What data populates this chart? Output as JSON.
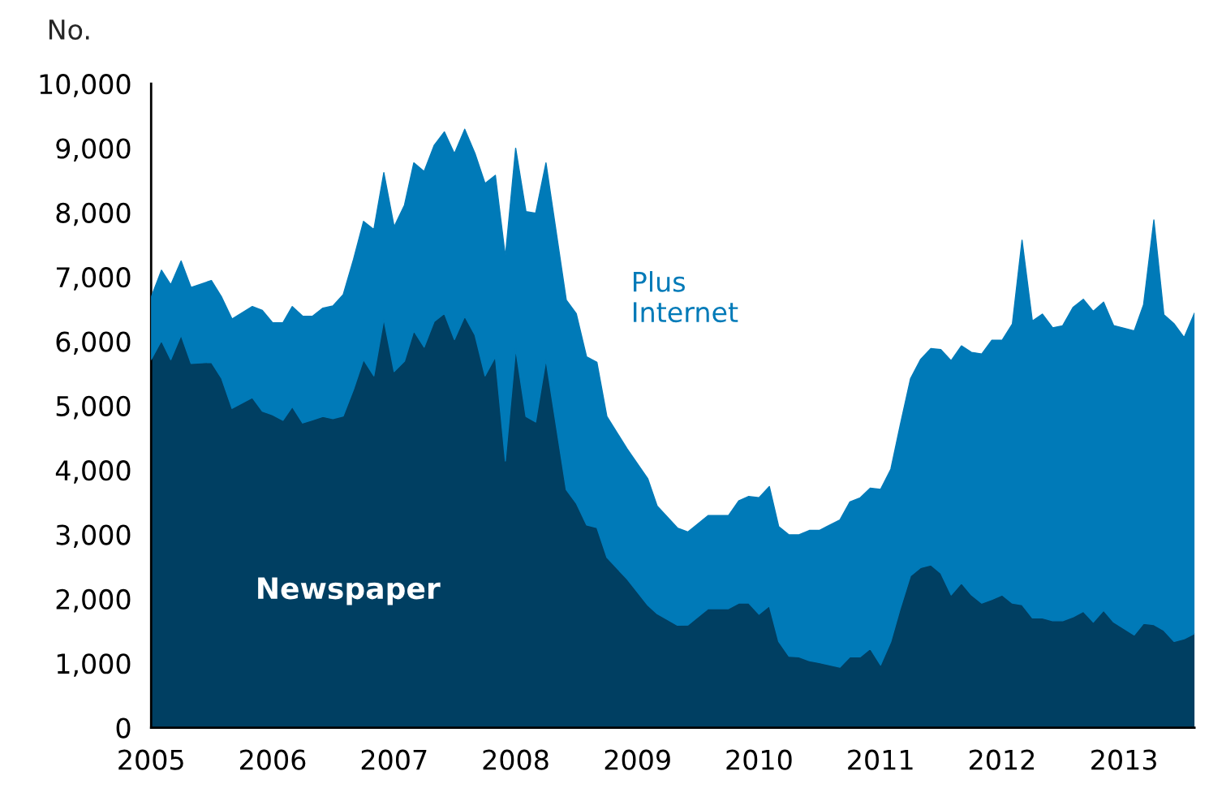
{
  "chart_data": {
    "type": "area",
    "stacked": true,
    "ylabel": "No.",
    "x": [
      "2005-01",
      "2005-02",
      "2005-03",
      "2005-04",
      "2005-05",
      "2005-07",
      "2005-08",
      "2005-09",
      "2005-11",
      "2005-12",
      "2006-01",
      "2006-02",
      "2006-03",
      "2006-04",
      "2006-05",
      "2006-06",
      "2006-07",
      "2006-08",
      "2006-09",
      "2006-10",
      "2006-11",
      "2006-12",
      "2007-01",
      "2007-02",
      "2007-03",
      "2007-04",
      "2007-05",
      "2007-06",
      "2007-07",
      "2007-08",
      "2007-09",
      "2007-10",
      "2007-11",
      "2007-12",
      "2008-01",
      "2008-02",
      "2008-03",
      "2008-04",
      "2008-06",
      "2008-07",
      "2008-08",
      "2008-09",
      "2008-10",
      "2008-12",
      "2009-02",
      "2009-03",
      "2009-05",
      "2009-06",
      "2009-08",
      "2009-10",
      "2009-11",
      "2009-12",
      "2010-01",
      "2010-02",
      "2010-03",
      "2010-04",
      "2010-05",
      "2010-06",
      "2010-07",
      "2010-09",
      "2010-10",
      "2010-11",
      "2010-12",
      "2011-01",
      "2011-02",
      "2011-03",
      "2011-04",
      "2011-05",
      "2011-06",
      "2011-07",
      "2011-08",
      "2011-09",
      "2011-10",
      "2011-11",
      "2011-12",
      "2012-01",
      "2012-02",
      "2012-03",
      "2012-04",
      "2012-05",
      "2012-06",
      "2012-07",
      "2012-08",
      "2012-09",
      "2012-10",
      "2012-11",
      "2012-12",
      "2013-02",
      "2013-03",
      "2013-04",
      "2013-05",
      "2013-06",
      "2013-07",
      "2013-08"
    ],
    "series": [
      {
        "name": "Newspaper",
        "color": "#003f62",
        "values": [
          5715,
          6010,
          5715,
          6094,
          5657,
          5673,
          5421,
          4958,
          5126,
          4916,
          4857,
          4773,
          4983,
          4731,
          4780,
          4832,
          4800,
          4840,
          5253,
          5715,
          5463,
          6346,
          5530,
          5690,
          6162,
          5909,
          6305,
          6431,
          6027,
          6389,
          6094,
          5463,
          5758,
          4141,
          5884,
          4832,
          4747,
          5715,
          3695,
          3485,
          3148,
          3106,
          2643,
          2306,
          1900,
          1770,
          1590,
          1593,
          1848,
          1848,
          1934,
          1934,
          1763,
          1891,
          1338,
          1108,
          1100,
          1040,
          1010,
          939,
          1100,
          1100,
          1227,
          972,
          1338,
          1848,
          2359,
          2485,
          2528,
          2400,
          2061,
          2247,
          2061,
          1934,
          1990,
          2061,
          1934,
          1910,
          1705,
          1705,
          1660,
          1660,
          1720,
          1806,
          1640,
          1820,
          1640,
          1440,
          1620,
          1600,
          1510,
          1338,
          1380,
          1460
        ]
      },
      {
        "name": "Plus\nInternet",
        "color": "#007ab8",
        "values": [
          969,
          1094,
          1162,
          1153,
          1178,
          1271,
          1263,
          1388,
          1414,
          1564,
          1431,
          1515,
          1557,
          1658,
          1609,
          1683,
          1748,
          1885,
          2020,
          2147,
          2273,
          2274,
          2248,
          2424,
          2609,
          2727,
          2735,
          2820,
          2887,
          2904,
          2820,
          2988,
          2820,
          3174,
          3114,
          3181,
          3241,
          3056,
          2946,
          2946,
          2610,
          2567,
          2189,
          2021,
          1964,
          1673,
          1510,
          1445,
          1445,
          1445,
          1589,
          1657,
          1807,
          1854,
          1786,
          1887,
          1895,
          2023,
          2053,
          2286,
          2405,
          2470,
          2493,
          2728,
          2677,
          2849,
          3060,
          3232,
          3358,
          3470,
          3638,
          3682,
          3768,
          3869,
          4025,
          3954,
          4336,
          5661,
          4608,
          4717,
          4550,
          4580,
          4805,
          4846,
          4825,
          4789,
          4605,
          4722,
          4946,
          6284,
          4904,
          4932,
          4678,
          4979
        ]
      }
    ],
    "xlim": [
      "2005-01-01",
      "2013-08-01"
    ],
    "xticks": [
      {
        "value": "2005-01-01",
        "label": "2005"
      },
      {
        "value": "2006-01-01",
        "label": "2006"
      },
      {
        "value": "2007-01-01",
        "label": "2007"
      },
      {
        "value": "2008-01-01",
        "label": "2008"
      },
      {
        "value": "2009-01-01",
        "label": "2009"
      },
      {
        "value": "2010-01-01",
        "label": "2010"
      },
      {
        "value": "2011-01-01",
        "label": "2011"
      },
      {
        "value": "2012-01-01",
        "label": "2012"
      },
      {
        "value": "2013-01-01",
        "label": "2013"
      }
    ],
    "ylim": [
      0,
      10000
    ],
    "yticks": [
      0,
      {
        "value": 1000,
        "label": "1,000"
      },
      {
        "value": 2000,
        "label": "2,000"
      },
      {
        "value": 3000,
        "label": "3,000"
      },
      {
        "value": 4000,
        "label": "4,000"
      },
      {
        "value": 5000,
        "label": "5,000"
      },
      {
        "value": 6000,
        "label": "6,000"
      },
      {
        "value": 7000,
        "label": "7,000"
      },
      {
        "value": 8000,
        "label": "8,000"
      },
      {
        "value": 9000,
        "label": "9,000"
      },
      {
        "value": 10000,
        "label": "10,000"
      }
    ]
  }
}
